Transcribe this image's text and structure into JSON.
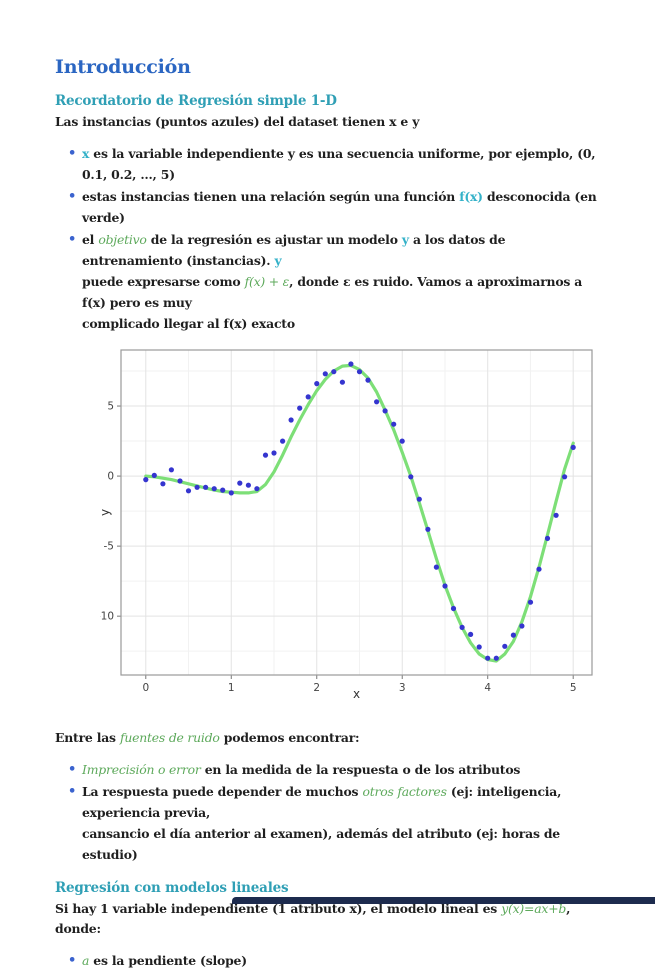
{
  "document": {
    "title": "Introducción",
    "section1": {
      "heading": "Recordatorio de Regresión simple 1-D",
      "lead": "Las instancias (puntos azules) del dataset tienen x e y",
      "bullets": [
        [
          {
            "t": "x",
            "s": "cyan"
          },
          {
            "t": " es la variable independiente y es una secuencia uniforme, por ejemplo, (0, 0.1, 0.2, …, 5)"
          }
        ],
        [
          {
            "t": "estas instancias tienen una relación según una función "
          },
          {
            "t": "f(x)",
            "s": "cyan"
          },
          {
            "t": " desconocida (en verde)"
          }
        ],
        [
          {
            "t": "el "
          },
          {
            "t": "objetivo",
            "s": "green"
          },
          {
            "t": " de la regresión es ajustar un modelo "
          },
          {
            "t": "y",
            "s": "cyan"
          },
          {
            "t": " a los datos de entrenamiento (instancias). "
          },
          {
            "t": "y",
            "s": "cyan"
          },
          {
            "s": "br"
          },
          {
            "t": "puede expresarse como "
          },
          {
            "t": "f(x) + ε",
            "s": "green"
          },
          {
            "t": ", donde ε es ruido. Vamos a aproximarnos a f(x) pero es muy"
          },
          {
            "s": "br"
          },
          {
            "t": "complicado llegar al f(x) exacto"
          }
        ]
      ]
    },
    "noise": {
      "lead": [
        {
          "t": "Entre las "
        },
        {
          "t": "fuentes de ruido",
          "s": "green"
        },
        {
          "t": " podemos encontrar:"
        }
      ],
      "bullets": [
        [
          {
            "t": "Imprecisión o error",
            "s": "green"
          },
          {
            "t": " en la medida de la respuesta o de los atributos"
          }
        ],
        [
          {
            "t": "La respuesta puede depender de muchos "
          },
          {
            "t": "otros factores",
            "s": "green"
          },
          {
            "t": " (ej: inteligencia, experiencia previa,"
          },
          {
            "s": "br"
          },
          {
            "t": "cansancio el día anterior al examen), además del atributo (ej: horas de estudio)"
          }
        ]
      ]
    },
    "section2": {
      "heading": "Regresión con modelos lineales",
      "lead": [
        {
          "t": "Si hay 1 variable independiente (1 atributo x), el modelo lineal es "
        },
        {
          "t": "y(x)=ax+b",
          "s": "green"
        },
        {
          "t": ", donde:"
        }
      ],
      "bullets": [
        [
          {
            "t": "a",
            "s": "green"
          },
          {
            "t": " es la pendiente (slope)"
          }
        ]
      ]
    }
  },
  "colors": {
    "title_blue": "#2b66c2",
    "heading_teal": "#2f9fb5",
    "inline_cyan": "#33b1c8",
    "inline_green": "#5da95b",
    "bullet_dot": "#3b63cf",
    "scatter_blue": "#3535cf",
    "curve_green": "#7ddf77",
    "bottom_bar_navy": "#1d2b4e"
  },
  "chart_data": {
    "type": "scatter",
    "title": "",
    "xlabel": "x",
    "ylabel": "y",
    "xlim": [
      -0.29,
      5.22
    ],
    "ylim": [
      -14.2,
      9.0
    ],
    "x_ticks": [
      0,
      1,
      2,
      3,
      4,
      5
    ],
    "y_ticks": [
      5,
      0,
      -5,
      -10
    ],
    "x_minor": [
      0.5,
      1.5,
      2.5,
      3.5,
      4.5
    ],
    "y_minor": [
      7.5,
      2.5,
      -2.5,
      -7.5,
      -12.5
    ],
    "grid": true,
    "legend": "none",
    "series": [
      {
        "name": "f(x) desconocida (curva verde)",
        "type": "line",
        "color": "#7ddf77",
        "points": [
          [
            0,
            0
          ],
          [
            0.1,
            -0.05
          ],
          [
            0.2,
            -0.15
          ],
          [
            0.3,
            -0.25
          ],
          [
            0.4,
            -0.4
          ],
          [
            0.5,
            -0.55
          ],
          [
            0.6,
            -0.7
          ],
          [
            0.7,
            -0.85
          ],
          [
            0.8,
            -1.0
          ],
          [
            0.9,
            -1.1
          ],
          [
            1.0,
            -1.15
          ],
          [
            1.1,
            -1.2
          ],
          [
            1.2,
            -1.2
          ],
          [
            1.3,
            -1.1
          ],
          [
            1.4,
            -0.6
          ],
          [
            1.5,
            0.3
          ],
          [
            1.6,
            1.5
          ],
          [
            1.7,
            2.8
          ],
          [
            1.8,
            4.0
          ],
          [
            1.9,
            5.1
          ],
          [
            2.0,
            6.1
          ],
          [
            2.1,
            6.9
          ],
          [
            2.2,
            7.5
          ],
          [
            2.3,
            7.85
          ],
          [
            2.4,
            7.9
          ],
          [
            2.5,
            7.6
          ],
          [
            2.6,
            7.0
          ],
          [
            2.7,
            6.0
          ],
          [
            2.8,
            4.7
          ],
          [
            2.9,
            3.3
          ],
          [
            3.0,
            1.7
          ],
          [
            3.1,
            0.0
          ],
          [
            3.2,
            -1.9
          ],
          [
            3.3,
            -3.9
          ],
          [
            3.4,
            -5.9
          ],
          [
            3.5,
            -7.8
          ],
          [
            3.6,
            -9.4
          ],
          [
            3.7,
            -10.8
          ],
          [
            3.8,
            -11.9
          ],
          [
            3.9,
            -12.7
          ],
          [
            4.0,
            -13.1
          ],
          [
            4.1,
            -13.2
          ],
          [
            4.2,
            -12.7
          ],
          [
            4.3,
            -11.8
          ],
          [
            4.4,
            -10.4
          ],
          [
            4.5,
            -8.6
          ],
          [
            4.6,
            -6.5
          ],
          [
            4.7,
            -4.2
          ],
          [
            4.8,
            -1.8
          ],
          [
            4.9,
            0.5
          ],
          [
            5.0,
            2.35
          ]
        ]
      },
      {
        "name": "instancias (puntos azules)",
        "type": "scatter",
        "color": "#3535cf",
        "points": [
          [
            0.0,
            -0.25
          ],
          [
            0.1,
            0.05
          ],
          [
            0.2,
            -0.55
          ],
          [
            0.3,
            0.45
          ],
          [
            0.4,
            -0.35
          ],
          [
            0.5,
            -1.05
          ],
          [
            0.6,
            -0.8
          ],
          [
            0.7,
            -0.8
          ],
          [
            0.8,
            -0.9
          ],
          [
            0.9,
            -1.0
          ],
          [
            1.0,
            -1.2
          ],
          [
            1.1,
            -0.5
          ],
          [
            1.2,
            -0.65
          ],
          [
            1.3,
            -0.9
          ],
          [
            1.4,
            1.5
          ],
          [
            1.5,
            1.65
          ],
          [
            1.6,
            2.5
          ],
          [
            1.7,
            4.0
          ],
          [
            1.8,
            4.85
          ],
          [
            1.9,
            5.65
          ],
          [
            2.0,
            6.6
          ],
          [
            2.1,
            7.3
          ],
          [
            2.2,
            7.45
          ],
          [
            2.3,
            6.7
          ],
          [
            2.4,
            8.0
          ],
          [
            2.5,
            7.45
          ],
          [
            2.6,
            6.85
          ],
          [
            2.7,
            5.3
          ],
          [
            2.8,
            4.65
          ],
          [
            2.9,
            3.7
          ],
          [
            3.0,
            2.5
          ],
          [
            3.1,
            -0.05
          ],
          [
            3.2,
            -1.65
          ],
          [
            3.3,
            -3.8
          ],
          [
            3.4,
            -6.5
          ],
          [
            3.5,
            -7.85
          ],
          [
            3.6,
            -9.45
          ],
          [
            3.7,
            -10.8
          ],
          [
            3.8,
            -11.3
          ],
          [
            3.9,
            -12.2
          ],
          [
            4.0,
            -13.0
          ],
          [
            4.1,
            -13.0
          ],
          [
            4.2,
            -12.15
          ],
          [
            4.3,
            -11.35
          ],
          [
            4.4,
            -10.7
          ],
          [
            4.5,
            -9.0
          ],
          [
            4.6,
            -6.65
          ],
          [
            4.7,
            -4.45
          ],
          [
            4.8,
            -2.8
          ],
          [
            4.9,
            -0.05
          ],
          [
            5.0,
            2.05
          ]
        ]
      }
    ]
  }
}
